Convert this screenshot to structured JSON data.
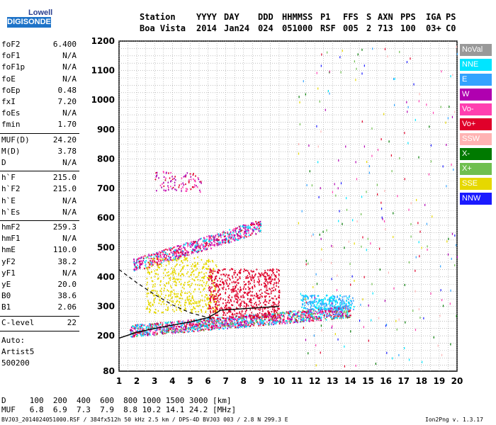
{
  "logo": {
    "line1": "Lowell",
    "line2": "DIGISONDE"
  },
  "header": {
    "labels": [
      "Station",
      "YYYY",
      "DAY",
      "DDD",
      "HHMMSS",
      "P1",
      "FFS",
      "S",
      "AXN",
      "PPS",
      "IGA",
      "PS"
    ],
    "values": [
      "Boa Vista",
      "2014",
      "Jan24",
      "024",
      "051000",
      "RSF",
      "005",
      "2",
      "713",
      "100",
      "03+",
      "C0"
    ]
  },
  "params": {
    "group1": [
      {
        "label": "foF2",
        "value": "6.400"
      },
      {
        "label": "foF1",
        "value": "N/A"
      },
      {
        "label": "foF1p",
        "value": "N/A"
      },
      {
        "label": "foE",
        "value": "N/A"
      },
      {
        "label": "foEp",
        "value": "0.48"
      },
      {
        "label": "fxI",
        "value": "7.20"
      },
      {
        "label": "foEs",
        "value": "N/A"
      },
      {
        "label": "fmin",
        "value": "1.70"
      }
    ],
    "group2": [
      {
        "label": "MUF(D)",
        "value": "24.20"
      },
      {
        "label": "M(D)",
        "value": "3.78"
      },
      {
        "label": "D",
        "value": "N/A"
      }
    ],
    "group3": [
      {
        "label": "h`F",
        "value": "215.0"
      },
      {
        "label": "h`F2",
        "value": "215.0"
      },
      {
        "label": "h`E",
        "value": "N/A"
      },
      {
        "label": "h`Es",
        "value": "N/A"
      }
    ],
    "group4": [
      {
        "label": "hmF2",
        "value": "259.3"
      },
      {
        "label": "hmF1",
        "value": "N/A"
      },
      {
        "label": "hmE",
        "value": "110.0"
      },
      {
        "label": "yF2",
        "value": "38.2"
      },
      {
        "label": "yF1",
        "value": "N/A"
      },
      {
        "label": "yE",
        "value": "20.0"
      },
      {
        "label": "B0",
        "value": "38.6"
      },
      {
        "label": "B1",
        "value": "2.06"
      }
    ],
    "group5": [
      {
        "label": "C-level",
        "value": "22"
      }
    ],
    "extra": [
      "Auto:",
      "Artist5",
      "500200"
    ]
  },
  "legend": [
    {
      "label": "NoVal",
      "color": "#999999"
    },
    {
      "label": "NNE",
      "color": "#00e5ff"
    },
    {
      "label": "E",
      "color": "#33a3ff"
    },
    {
      "label": "W",
      "color": "#b000b0"
    },
    {
      "label": "Vo-",
      "color": "#ff3fb0"
    },
    {
      "label": "Vo+",
      "color": "#e0002a"
    },
    {
      "label": "SSW",
      "color": "#ffb3b3"
    },
    {
      "label": "X-",
      "color": "#007a00"
    },
    {
      "label": "X+",
      "color": "#6fbf4f"
    },
    {
      "label": "SSE",
      "color": "#e6d800"
    },
    {
      "label": "NNW",
      "color": "#1a1aff"
    }
  ],
  "footer": {
    "d_row": "D     100  200  400  600  800 1000 1500 3000 [km]",
    "muf_row": "MUF   6.8  6.9  7.3  7.9  8.8 10.2 14.1 24.2 [MHz]",
    "file_info": "BVJ03_2014024051000.RSF / 384fx512h 50 kHz 2.5 km / DPS-4D BVJ03 003 / 2.8 N 299.3 E",
    "version": "Ion2Png v. 1.3.17"
  },
  "chart_data": {
    "type": "scatter",
    "xlim": [
      1,
      20
    ],
    "ylim": [
      80,
      1200
    ],
    "x_ticks": [
      1,
      2,
      3,
      4,
      5,
      6,
      7,
      8,
      9,
      10,
      11,
      12,
      13,
      14,
      15,
      16,
      17,
      18,
      19,
      20
    ],
    "y_ticks": [
      80,
      200,
      300,
      400,
      500,
      600,
      700,
      800,
      900,
      1000,
      1100,
      1200
    ],
    "grid": true,
    "clusters": [
      {
        "mode": "F2 trace",
        "x_range": [
          1.6,
          14.0
        ],
        "height_range": [
          210,
          330
        ],
        "colors": [
          "#e0002a",
          "#b000b0",
          "#ff3fb0",
          "#33a3ff",
          "#6fbf4f",
          "#00e5ff"
        ]
      },
      {
        "mode": "2F multiple",
        "x_range": [
          1.8,
          9.0
        ],
        "height_range": [
          440,
          590
        ],
        "colors": [
          "#b000b0",
          "#ff3fb0",
          "#00e5ff",
          "#e0002a"
        ]
      },
      {
        "mode": "3F multiple",
        "x_range": [
          3.0,
          5.6
        ],
        "height_range": [
          690,
          760
        ],
        "colors": [
          "#b000b0",
          "#ff3fb0",
          "#e0002a"
        ]
      },
      {
        "mode": "SSE spread",
        "x_range": [
          2.5,
          6.5
        ],
        "height_range": [
          280,
          470
        ],
        "colors": [
          "#e6d800"
        ]
      },
      {
        "mode": "Vo+ spread",
        "x_range": [
          6.0,
          10.0
        ],
        "height_range": [
          260,
          430
        ],
        "colors": [
          "#e0002a"
        ]
      },
      {
        "mode": "E direction",
        "x_range": [
          11.2,
          14.2
        ],
        "height_range": [
          290,
          340
        ],
        "colors": [
          "#33a3ff",
          "#00e5ff"
        ]
      }
    ],
    "profile_curve": {
      "x": [
        1.0,
        2.0,
        3.0,
        4.0,
        5.0,
        6.0,
        6.4,
        6.7,
        8.0,
        10.0
      ],
      "y": [
        192,
        212,
        225,
        236,
        247,
        262,
        275,
        287,
        292,
        300
      ]
    },
    "leading_edge_dashed": {
      "x": [
        1.0,
        2.0,
        3.0,
        4.0,
        5.0,
        6.0,
        6.3
      ],
      "y": [
        425,
        380,
        340,
        305,
        278,
        262,
        258
      ]
    }
  }
}
